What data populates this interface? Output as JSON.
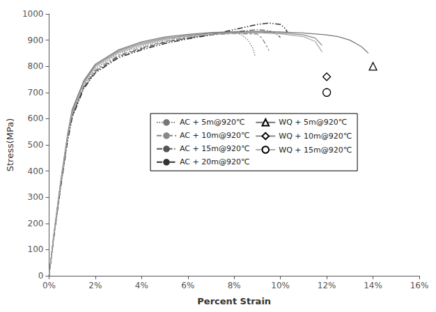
{
  "chart_data": {
    "type": "line",
    "xlabel": "Percent Strain",
    "ylabel": "Stress(MPa)",
    "xlim": [
      0,
      0.16
    ],
    "ylim": [
      0,
      1000
    ],
    "xticks": [
      {
        "value": 0.0,
        "label": "0%"
      },
      {
        "value": 0.02,
        "label": "2%"
      },
      {
        "value": 0.04,
        "label": "4%"
      },
      {
        "value": 0.06,
        "label": "6%"
      },
      {
        "value": 0.08,
        "label": "8%"
      },
      {
        "value": 0.1,
        "label": "10%"
      },
      {
        "value": 0.12,
        "label": "12%"
      },
      {
        "value": 0.14,
        "label": "14%"
      },
      {
        "value": 0.16,
        "label": "16%"
      }
    ],
    "yticks": [
      0,
      100,
      200,
      300,
      400,
      500,
      600,
      700,
      800,
      900,
      1000
    ],
    "grid": false,
    "legend": "center",
    "series": [
      {
        "name": "AC + 5m@920℃",
        "color": "#777777",
        "line_style": "dotted",
        "x": [
          0,
          0.002,
          0.005,
          0.008,
          0.01,
          0.015,
          0.02,
          0.03,
          0.04,
          0.05,
          0.06,
          0.07,
          0.08,
          0.083,
          0.086,
          0.088,
          0.089
        ],
        "values": [
          0,
          150,
          350,
          530,
          620,
          730,
          790,
          850,
          878,
          900,
          915,
          924,
          928,
          922,
          900,
          870,
          840
        ]
      },
      {
        "name": "AC + 10m@920℃",
        "color": "#888888",
        "line_style": "dashdot",
        "x": [
          0,
          0.002,
          0.005,
          0.008,
          0.01,
          0.015,
          0.02,
          0.03,
          0.04,
          0.05,
          0.06,
          0.07,
          0.08,
          0.09,
          0.092,
          0.094,
          0.095
        ],
        "values": [
          0,
          148,
          345,
          525,
          615,
          725,
          785,
          843,
          872,
          895,
          910,
          920,
          925,
          923,
          908,
          878,
          860
        ]
      },
      {
        "name": "AC + 15m@920℃",
        "color": "#555555",
        "line_style": "longdashdot",
        "x": [
          0,
          0.002,
          0.005,
          0.008,
          0.01,
          0.015,
          0.02,
          0.03,
          0.04,
          0.05,
          0.06,
          0.07,
          0.08,
          0.09,
          0.095,
          0.098,
          0.1
        ],
        "values": [
          0,
          145,
          340,
          520,
          610,
          720,
          780,
          838,
          868,
          892,
          908,
          920,
          932,
          940,
          936,
          925,
          910
        ]
      },
      {
        "name": "AC + 20m@920℃",
        "color": "#333333",
        "line_style": "dashdotdot",
        "x": [
          0,
          0.002,
          0.005,
          0.008,
          0.01,
          0.015,
          0.02,
          0.03,
          0.04,
          0.05,
          0.06,
          0.07,
          0.08,
          0.09,
          0.095,
          0.1,
          0.102,
          0.103
        ],
        "values": [
          0,
          143,
          338,
          515,
          605,
          715,
          775,
          833,
          863,
          887,
          905,
          920,
          940,
          960,
          965,
          960,
          945,
          930
        ]
      },
      {
        "name": "WQ + 5m@920℃",
        "color": "#777777",
        "line_style": "solid",
        "marker": "triangle",
        "x": [
          0,
          0.002,
          0.005,
          0.008,
          0.01,
          0.015,
          0.02,
          0.03,
          0.04,
          0.05,
          0.06,
          0.07,
          0.08,
          0.09,
          0.1,
          0.11,
          0.12,
          0.125,
          0.13,
          0.135,
          0.138
        ],
        "values": [
          0,
          155,
          360,
          540,
          635,
          745,
          808,
          863,
          893,
          912,
          922,
          929,
          932,
          933,
          931,
          927,
          920,
          913,
          900,
          875,
          850
        ],
        "marker_x": 0.14,
        "marker_y": 800
      },
      {
        "name": "WQ + 10m@920℃",
        "color": "#888888",
        "line_style": "solid",
        "marker": "diamond",
        "x": [
          0,
          0.002,
          0.005,
          0.008,
          0.01,
          0.015,
          0.02,
          0.03,
          0.04,
          0.05,
          0.06,
          0.07,
          0.08,
          0.09,
          0.1,
          0.11,
          0.115,
          0.118
        ],
        "values": [
          0,
          152,
          355,
          535,
          628,
          740,
          803,
          858,
          888,
          907,
          918,
          926,
          930,
          931,
          928,
          920,
          908,
          880
        ],
        "marker_x": 0.12,
        "marker_y": 760
      },
      {
        "name": "WQ + 15m@920℃",
        "color": "#aaaaaa",
        "line_style": "solid",
        "marker": "circle",
        "x": [
          0,
          0.002,
          0.005,
          0.008,
          0.01,
          0.015,
          0.02,
          0.03,
          0.04,
          0.05,
          0.06,
          0.07,
          0.08,
          0.09,
          0.1,
          0.11,
          0.115,
          0.118
        ],
        "values": [
          0,
          150,
          350,
          530,
          622,
          735,
          798,
          853,
          883,
          903,
          914,
          922,
          926,
          928,
          924,
          913,
          895,
          855
        ],
        "marker_x": 0.12,
        "marker_y": 700
      }
    ]
  }
}
